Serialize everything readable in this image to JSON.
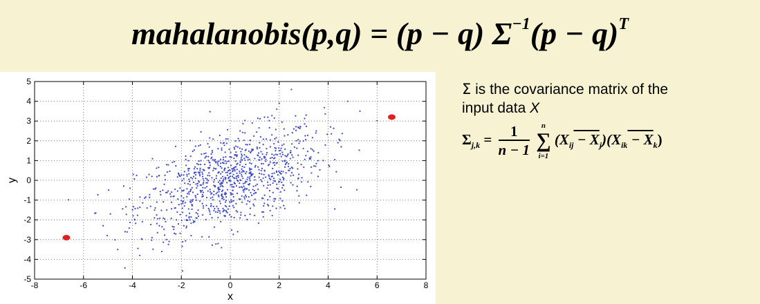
{
  "formula_top": {
    "text": "mahalanobis(p,q) = (p − q) Σ",
    "superscript": "−1",
    "tail": "(p − q)",
    "tail_sup": "T"
  },
  "description": {
    "line1_symbol": "Σ",
    "line1_text": " is the covariance matrix of the",
    "line2_text": "input data ",
    "line2_var": "X"
  },
  "formula2": {
    "lhs": "Σ",
    "lhs_sub": "j,k",
    "eq": "=",
    "frac_num": "1",
    "frac_den": "n − 1",
    "sum_upper": "n",
    "sum_lower": "i=1",
    "rhs": "(X",
    "rhs_sub1": "ij",
    "rhs_mid": " − X",
    "rhs_sub2": "j",
    "rhs_mid2": ")(X",
    "rhs_sub3": "ik",
    "rhs_mid3": " − X",
    "rhs_sub4": "k",
    "rhs_end": ")"
  },
  "colors": {
    "background": "#f7f3d2",
    "points": "#3a46c8",
    "outliers": "#e02020"
  },
  "chart_data": {
    "type": "scatter",
    "title": "",
    "xlabel": "x",
    "ylabel": "y",
    "xlim": [
      -8,
      8
    ],
    "ylim": [
      -5,
      5
    ],
    "xticks": [
      -8,
      -6,
      -4,
      -2,
      0,
      2,
      4,
      6,
      8
    ],
    "yticks": [
      -5,
      -4,
      -3,
      -2,
      -1,
      0,
      1,
      2,
      3,
      4,
      5
    ],
    "grid": true,
    "series": [
      {
        "style": "small-blue-dots",
        "n_points": 1000,
        "x": [
          -5.2,
          -4.9,
          -4.6,
          -4.3,
          -4.1,
          -3.9,
          -3.7,
          -3.5,
          -3.4,
          -3.2,
          -3.0,
          -2.9,
          -2.7,
          -2.6,
          -2.5,
          -2.3,
          -2.2,
          -2.1,
          -2.0,
          -1.9,
          -1.8,
          -1.7,
          -1.6,
          -1.5,
          -1.4,
          -1.3,
          -1.2,
          -1.1,
          -1.0,
          -0.9,
          -0.8,
          -0.7,
          -0.6,
          -0.5,
          -0.4,
          -0.3,
          -0.2,
          -0.1,
          0.0,
          0.1,
          0.2,
          0.3,
          0.4,
          0.5,
          0.6,
          0.7,
          0.8,
          0.9,
          1.0,
          1.1,
          1.2,
          1.3,
          1.4,
          1.5,
          1.6,
          1.7,
          1.8,
          1.9,
          2.0,
          2.1,
          2.2,
          2.3,
          2.5,
          2.7,
          2.9,
          3.1,
          3.3,
          3.5,
          3.8,
          4.1,
          4.4,
          4.8,
          5.3,
          -3.1,
          -2.4,
          -1.6,
          -0.9,
          -0.2,
          0.6,
          1.3,
          2.0,
          2.8,
          3.6,
          -2.8,
          -1.9,
          -1.1,
          -0.4,
          0.4,
          1.1,
          1.9,
          2.6,
          -0.5,
          0.3
        ],
        "y": [
          -2.3,
          -1.7,
          -3.5,
          -2.6,
          -0.4,
          -2.0,
          -3.8,
          -0.9,
          -1.4,
          -2.9,
          -1.1,
          -2.3,
          -0.2,
          -1.5,
          -3.1,
          -0.8,
          -2.0,
          0.3,
          -1.2,
          -0.5,
          -2.4,
          0.6,
          -1.0,
          -0.1,
          -1.9,
          0.8,
          -0.6,
          -1.4,
          0.1,
          1.2,
          -0.9,
          0.5,
          -1.6,
          1.6,
          -0.3,
          0.9,
          -1.1,
          2.1,
          0.2,
          -0.7,
          1.3,
          0.0,
          2.5,
          0.7,
          -0.4,
          1.8,
          0.4,
          2.9,
          1.1,
          -0.2,
          1.9,
          0.6,
          3.2,
          1.4,
          0.1,
          2.3,
          0.9,
          3.6,
          1.5,
          -0.1,
          2.6,
          1.2,
          4.6,
          2.0,
          0.8,
          3.3,
          1.6,
          2.4,
          1.0,
          2.7,
          1.9,
          4.0,
          3.5,
          -1.9,
          -0.6,
          -2.8,
          1.0,
          -1.8,
          2.4,
          -0.9,
          3.9,
          0.3,
          1.4,
          -3.6,
          -2.3,
          -1.3,
          0.7,
          -1.9,
          1.6,
          -0.4,
          2.6,
          -3.2,
          -2.6
        ]
      },
      {
        "style": "red-outliers",
        "x": [
          -6.7,
          6.6
        ],
        "y": [
          -2.9,
          3.2
        ]
      }
    ]
  }
}
